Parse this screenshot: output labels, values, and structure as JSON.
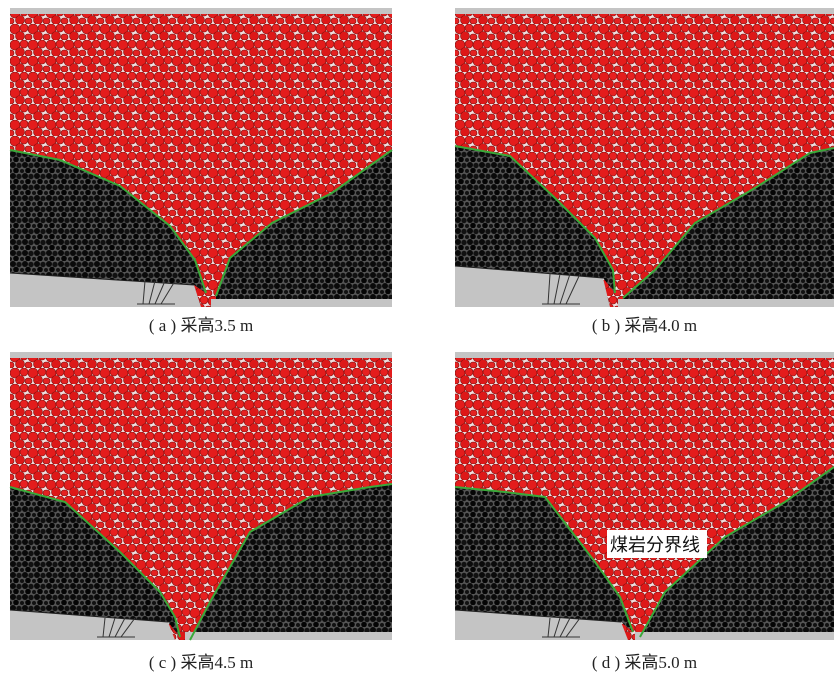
{
  "panels": [
    {
      "caption": "( a ) 采高3.5 m"
    },
    {
      "caption": "( b ) 采高4.0 m"
    },
    {
      "caption": "( c ) 采高4.5 m"
    },
    {
      "caption": "( d ) 采高5.0 m"
    }
  ],
  "annotation": "煤岩分界线"
}
